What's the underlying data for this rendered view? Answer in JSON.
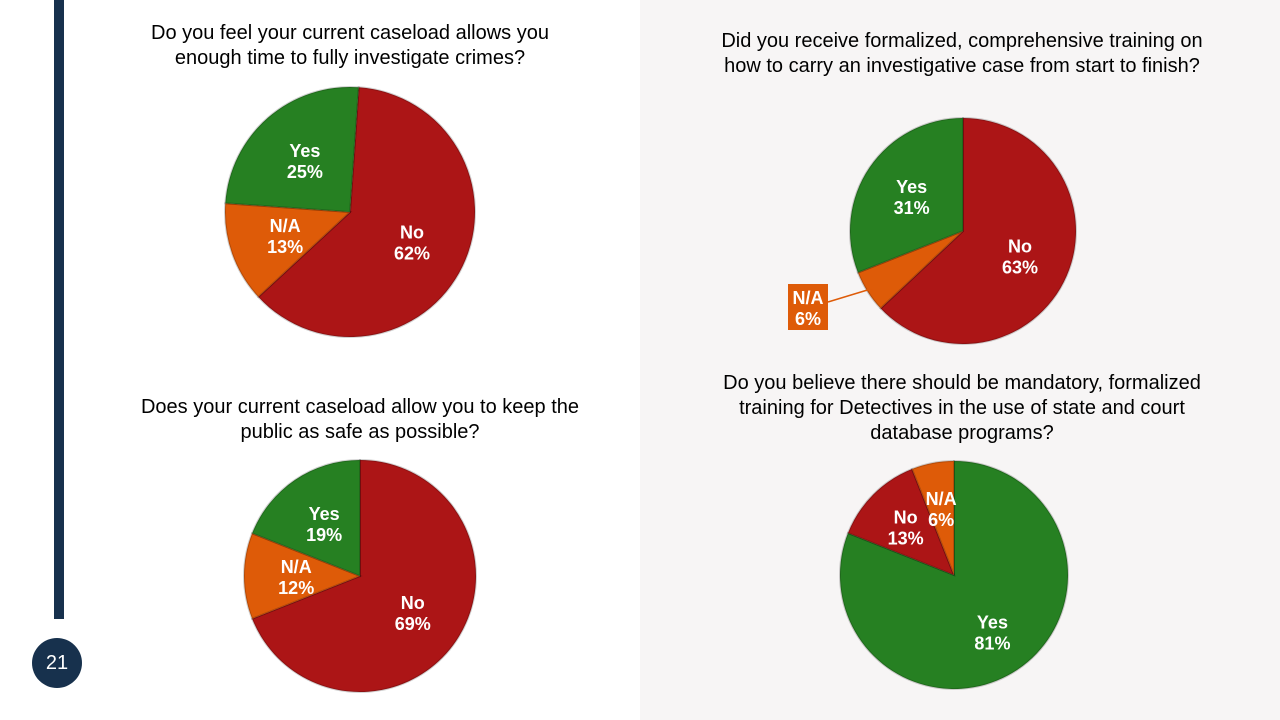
{
  "slide": {
    "page_number": "21"
  },
  "colors": {
    "yes": "#268022",
    "no": "#ac1516",
    "na": "#de5b08",
    "accent": "#17314d"
  },
  "chart_data": [
    {
      "type": "pie",
      "title": "Do you feel your current caseload allows you enough time to fully investigate crimes?",
      "slices": [
        {
          "label": "No",
          "value": 62,
          "display": "62%",
          "color_key": "no"
        },
        {
          "label": "N/A",
          "value": 13,
          "display": "13%",
          "color_key": "na"
        },
        {
          "label": "Yes",
          "value": 25,
          "display": "25%",
          "color_key": "yes"
        }
      ]
    },
    {
      "type": "pie",
      "title": "Did you receive formalized, comprehensive training on how to carry an investigative case from start to finish?",
      "slices": [
        {
          "label": "No",
          "value": 63,
          "display": "63%",
          "color_key": "no"
        },
        {
          "label": "N/A",
          "value": 6,
          "display": "6%",
          "color_key": "na"
        },
        {
          "label": "Yes",
          "value": 31,
          "display": "31%",
          "color_key": "yes"
        }
      ]
    },
    {
      "type": "pie",
      "title": "Does your current caseload allow you to keep the public as safe as possible?",
      "slices": [
        {
          "label": "No",
          "value": 69,
          "display": "69%",
          "color_key": "no"
        },
        {
          "label": "N/A",
          "value": 12,
          "display": "12%",
          "color_key": "na"
        },
        {
          "label": "Yes",
          "value": 19,
          "display": "19%",
          "color_key": "yes"
        }
      ]
    },
    {
      "type": "pie",
      "title": "Do you believe there should be mandatory, formalized training for Detectives in the use of state and court database programs?",
      "slices": [
        {
          "label": "Yes",
          "value": 81,
          "display": "81%",
          "color_key": "yes"
        },
        {
          "label": "No",
          "value": 13,
          "display": "13%",
          "color_key": "no"
        },
        {
          "label": "N/A",
          "value": 6,
          "display": "6%",
          "color_key": "na"
        }
      ]
    }
  ]
}
